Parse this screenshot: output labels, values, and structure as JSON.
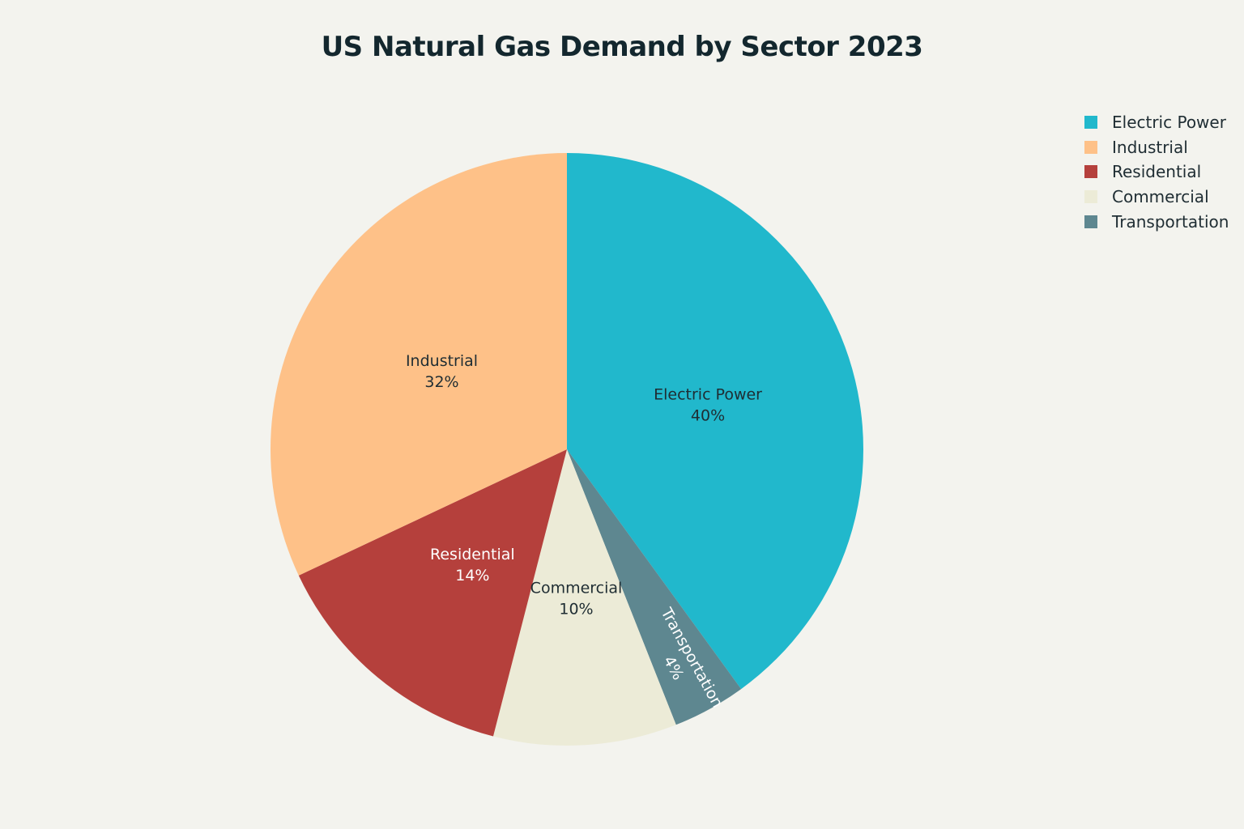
{
  "chart_data": {
    "type": "pie",
    "title": "US Natural Gas Demand by Sector 2023",
    "legend_position": "top-right",
    "slices": [
      {
        "label": "Electric Power",
        "value": 40,
        "value_label": "40%",
        "color": "#21b8cc",
        "text_color": "#1f2d33"
      },
      {
        "label": "Transportation",
        "value": 4,
        "value_label": "4%",
        "color": "#5e8790",
        "text_color": "#ffffff"
      },
      {
        "label": "Commercial",
        "value": 10,
        "value_label": "10%",
        "color": "#ecebd7",
        "text_color": "#1f2d33"
      },
      {
        "label": "Residential",
        "value": 14,
        "value_label": "14%",
        "color": "#b5403c",
        "text_color": "#ffffff"
      },
      {
        "label": "Industrial",
        "value": 32,
        "value_label": "32%",
        "color": "#fec188",
        "text_color": "#1f2d33"
      }
    ],
    "legend": [
      {
        "label": "Electric Power",
        "color": "#21b8cc"
      },
      {
        "label": "Industrial",
        "color": "#fec188"
      },
      {
        "label": "Residential",
        "color": "#b5403c"
      },
      {
        "label": "Commercial",
        "color": "#ecebd7"
      },
      {
        "label": "Transportation",
        "color": "#5e8790"
      }
    ]
  }
}
